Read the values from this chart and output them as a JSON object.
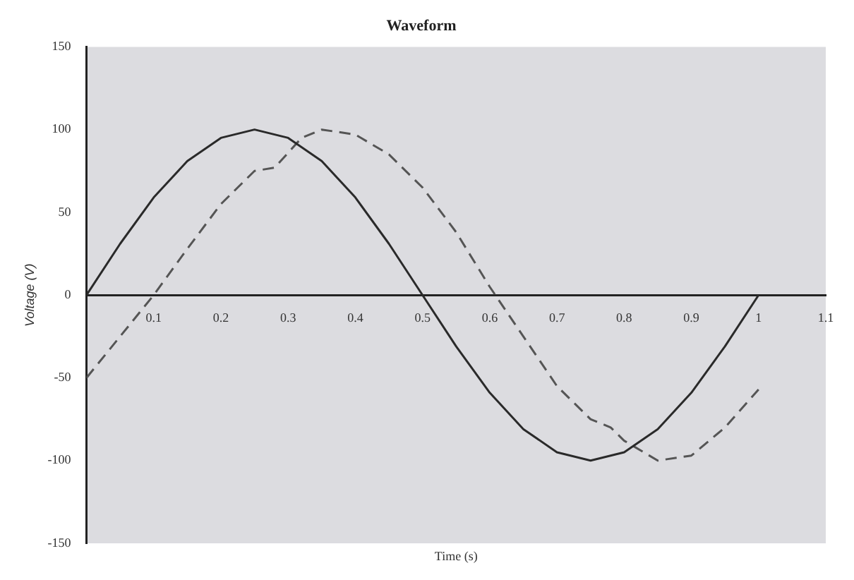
{
  "chart_data": {
    "type": "line",
    "title": "Waveform",
    "xlabel": "Time (s)",
    "ylabel": "Voltage (V)",
    "xlim": [
      0,
      1.1
    ],
    "xticks": [
      0.1,
      0.2,
      0.3,
      0.4,
      0.5,
      0.6,
      0.7,
      0.8,
      0.9,
      1.0,
      1.1
    ],
    "ylim": [
      -150,
      150
    ],
    "yticks": [
      -150,
      -100,
      -50,
      0,
      50,
      100,
      150
    ],
    "grid": false,
    "marker": "none",
    "series": [
      {
        "color": "#2a2a2a",
        "line_style": "solid",
        "x": [
          0,
          0.05,
          0.1,
          0.15,
          0.2,
          0.25,
          0.3,
          0.35,
          0.4,
          0.45,
          0.5,
          0.55,
          0.6,
          0.65,
          0.7,
          0.75,
          0.8,
          0.85,
          0.9,
          0.95,
          1.0
        ],
        "values": [
          0,
          31,
          59,
          81,
          95,
          100,
          95,
          81,
          59,
          31,
          0,
          -31,
          -59,
          -81,
          -95,
          -100,
          -95,
          -81,
          -59,
          -31,
          0
        ]
      },
      {
        "color": "#555555",
        "line_style": "dashed",
        "x": [
          0,
          0.05,
          0.1,
          0.15,
          0.2,
          0.25,
          0.28,
          0.32,
          0.35,
          0.4,
          0.45,
          0.5,
          0.55,
          0.6,
          0.65,
          0.7,
          0.75,
          0.78,
          0.8,
          0.85,
          0.9,
          0.95,
          1.0
        ],
        "values": [
          -50,
          -25,
          0,
          28,
          55,
          75,
          77,
          95,
          100,
          97,
          85,
          65,
          38,
          5,
          -25,
          -55,
          -75,
          -80,
          -88,
          -100,
          -97,
          -80,
          -57
        ]
      }
    ]
  }
}
